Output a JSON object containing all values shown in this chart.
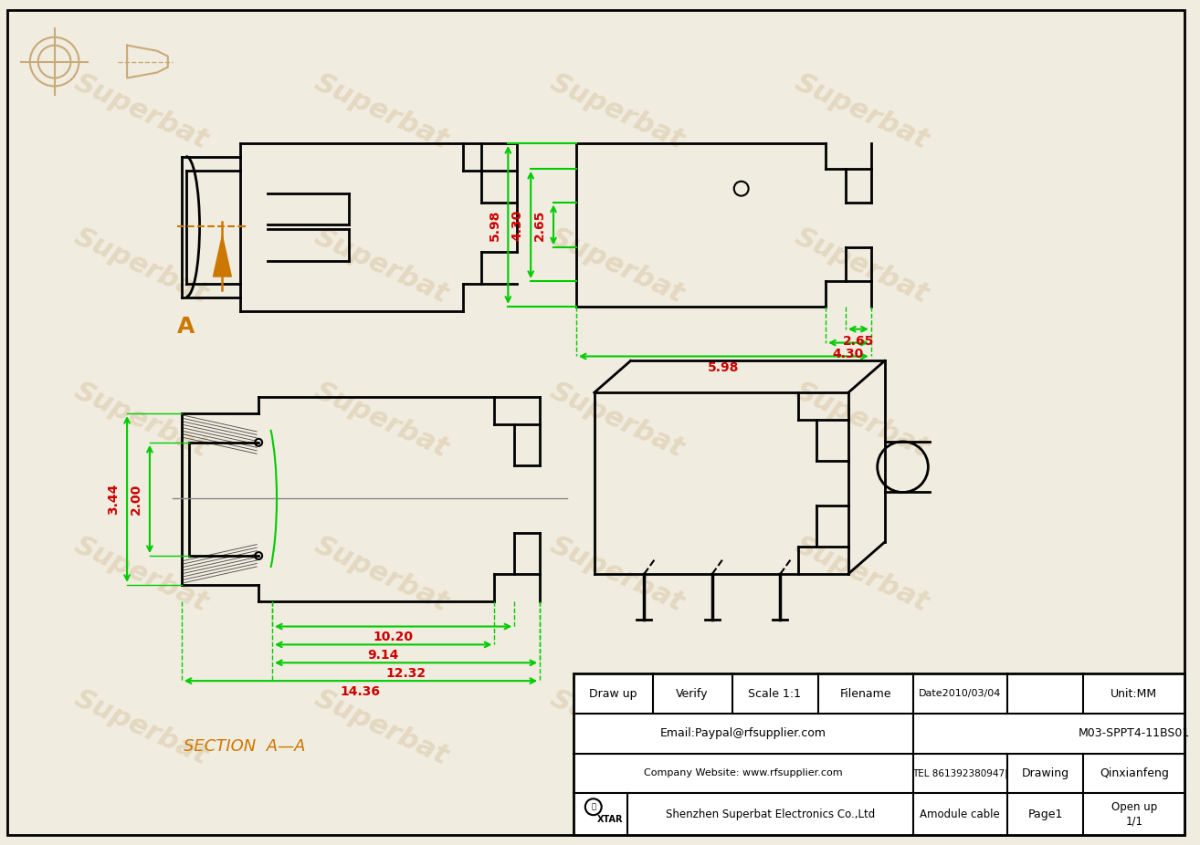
{
  "bg_color": "#f0ece0",
  "line_color": "#000000",
  "dim_color_green": "#00cc00",
  "dim_color_red": "#cc0000",
  "arrow_color": "#cc7700",
  "watermark_color": "#c8aa78",
  "watermark_alpha": 0.3,
  "watermark_text": "Superbat",
  "section_label": "SECTION  A—A",
  "title_block": {
    "draw_up": "Draw up",
    "verify": "Verify",
    "scale": "Scale 1:1",
    "filename": "Filename",
    "date": "Date2010/03/04",
    "unit": "Unit:MM",
    "email": "Email:Paypal@rfsupplier.com",
    "model": "M03-SPPT4-11BS01",
    "company_website": "Company Website: www.rfsupplier.com",
    "tel": "TEL 861392380947|",
    "drawing": "Drawing",
    "drawer": "Qinxianfeng",
    "company": "Shenzhen Superbat Electronics Co.,Ltd",
    "amodule": "Amodule cable",
    "page": "Page1",
    "open_up": "Open up\n1/1"
  }
}
